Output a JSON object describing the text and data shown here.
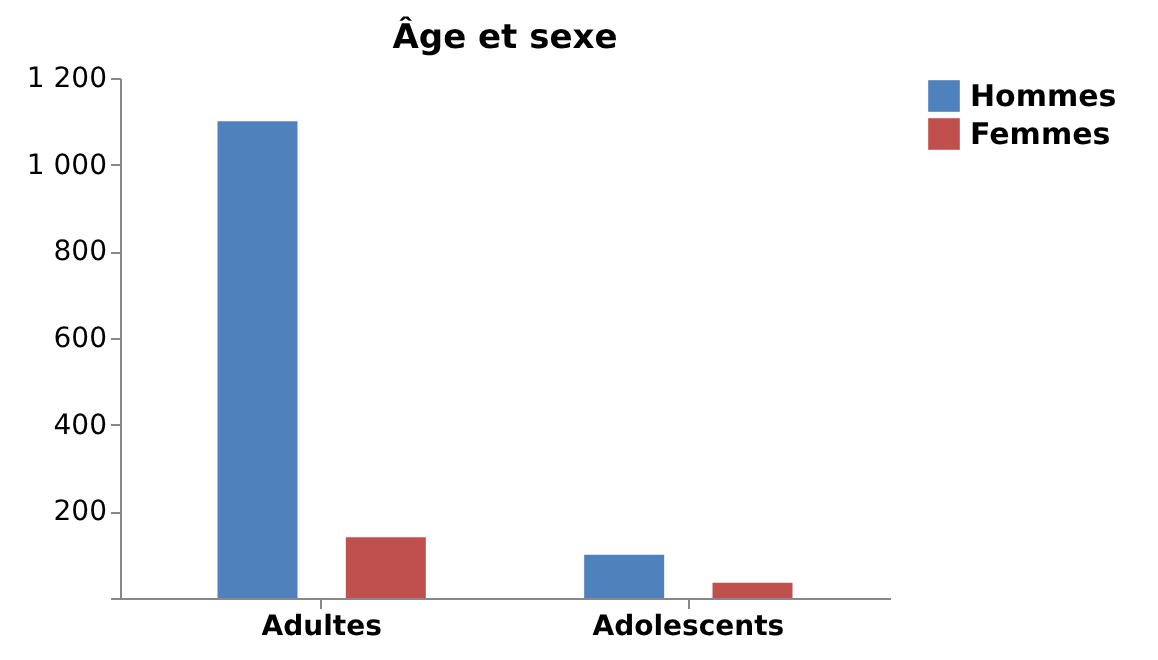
{
  "chart_data": {
    "type": "bar",
    "title": "Âge et sexe",
    "categories": [
      "Adultes",
      "Adolescents"
    ],
    "series": [
      {
        "name": "Hommes",
        "color": "#4f81bd",
        "values": [
          1100,
          100
        ]
      },
      {
        "name": "Femmes",
        "color": "#c0504d",
        "values": [
          140,
          35
        ]
      }
    ],
    "ylim": [
      0,
      1200
    ],
    "yticks": [
      {
        "value": 0,
        "label": null
      },
      200,
      400,
      600,
      800,
      {
        "value": 1000,
        "label": "1 000"
      },
      {
        "value": 1200,
        "label": "1 200"
      }
    ],
    "grid": false,
    "legend": "right"
  }
}
